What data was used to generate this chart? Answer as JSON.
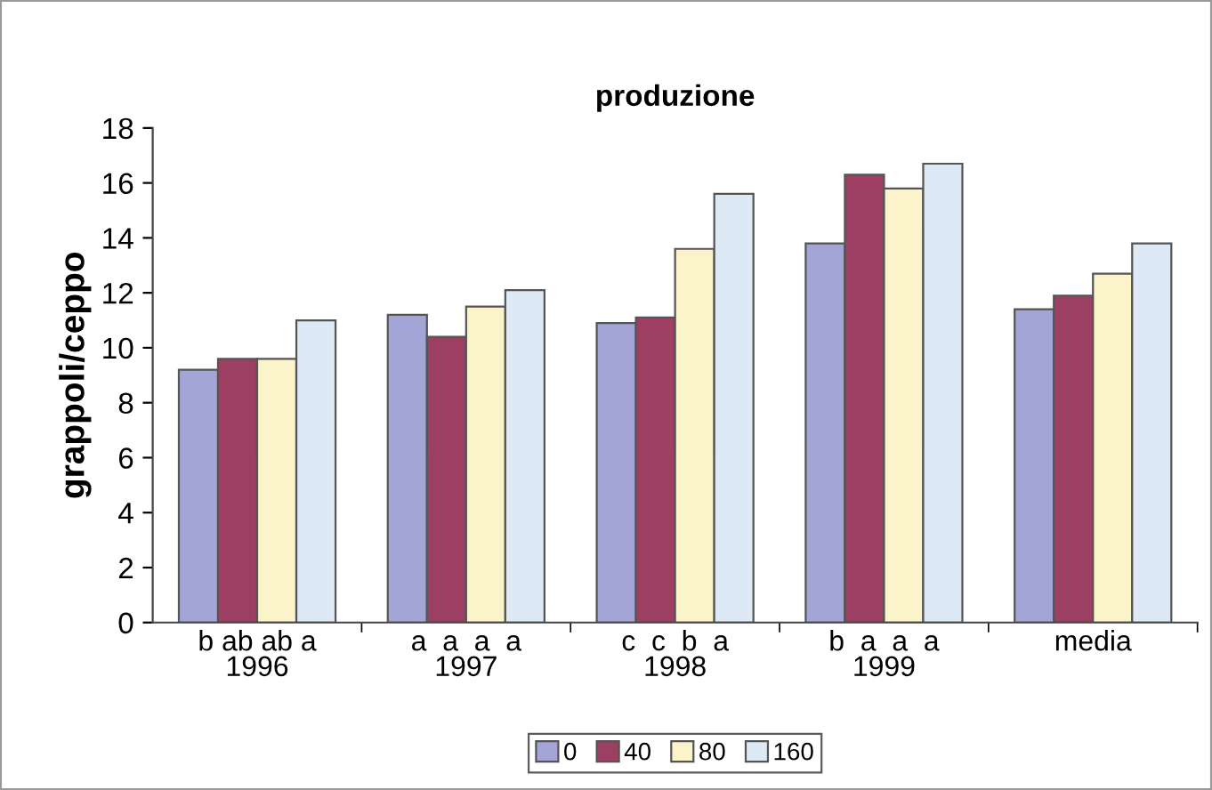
{
  "chart_data": {
    "type": "bar",
    "title": "produzione",
    "ylabel": "grappoli/ceppo",
    "categories": [
      "b ab ab a\n1996",
      "a  a  a  a\n1997",
      "c  c  b  a\n1998",
      "b  a  a  a\n1999",
      "media"
    ],
    "series": [
      {
        "name": "0",
        "color": "#a3a5d6",
        "values": [
          9.2,
          11.2,
          10.9,
          13.8,
          11.4
        ]
      },
      {
        "name": "40",
        "color": "#9c3f63",
        "values": [
          9.6,
          10.4,
          11.1,
          16.3,
          11.9
        ]
      },
      {
        "name": "80",
        "color": "#fbf3c9",
        "values": [
          9.6,
          11.5,
          13.6,
          15.8,
          12.7
        ]
      },
      {
        "name": "160",
        "color": "#dde9f4",
        "values": [
          11.0,
          12.1,
          15.6,
          16.7,
          13.8
        ]
      }
    ],
    "ylim": [
      0,
      18
    ],
    "yticks": [
      0,
      2,
      4,
      6,
      8,
      10,
      12,
      14,
      16,
      18
    ],
    "grid": false,
    "legend": "bottom"
  }
}
